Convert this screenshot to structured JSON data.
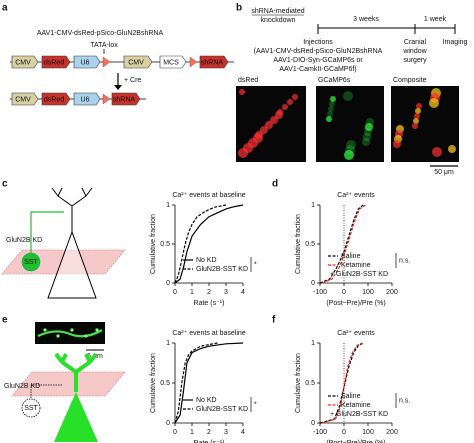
{
  "panel_labels": [
    "a",
    "b",
    "c",
    "d",
    "e",
    "f"
  ],
  "construct": {
    "title": "AAV1-CMV-dsRed-pSico-GluN2BshRNA",
    "lox": "TATA-lox",
    "cre": "+ Cre",
    "row1": [
      "CMV",
      "dsRed",
      "U6",
      "CMV",
      "MCS",
      "shRNA"
    ],
    "row2": [
      "CMV",
      "dsRed",
      "U6",
      "shRNA"
    ]
  },
  "timeline": {
    "heading": [
      "shRNA-mediated",
      "knockdown"
    ],
    "intervals": [
      "3 weeks",
      "1 week"
    ],
    "injections": [
      "Injections",
      "(AAV1-CMV-dsRed-pSico-GluN2BshRNA",
      "AAV1-DIO-Syn-GCaMP6s or",
      "AAV1-CamkII-GCaMP6f)"
    ],
    "surgery": [
      "Cranial",
      "window",
      "surgery"
    ],
    "imaging": "Imaging"
  },
  "images": {
    "labels": [
      "dsRed",
      "GCaMP6s",
      "Composite"
    ],
    "scale_bar": "50 μm"
  },
  "schematic_c": {
    "label": "GluN2B KD",
    "cell": "SST"
  },
  "schematic_e": {
    "scale_bar": "5 μm",
    "label": "GluN2B KD",
    "cell": "SST"
  },
  "chart_data": [
    {
      "type": "line",
      "title": "Ca²⁺ events at baseline",
      "xlabel": "Rate (s⁻¹)",
      "ylabel": "Cumulative fraction",
      "xlim": [
        0,
        4
      ],
      "xticks": [
        0,
        1,
        2,
        3,
        4
      ],
      "ylim": [
        0,
        1
      ],
      "yticks": [
        0,
        0.5,
        1
      ],
      "legend": "lower right",
      "series": [
        {
          "name": "No KD",
          "color": "#000000",
          "line_style": "solid",
          "x": [
            0,
            0.3,
            0.5,
            0.7,
            1,
            1.5,
            2,
            2.5,
            3,
            3.5,
            4
          ],
          "values": [
            0,
            0.05,
            0.2,
            0.4,
            0.6,
            0.75,
            0.85,
            0.9,
            0.95,
            0.98,
            1
          ]
        },
        {
          "name": "GluN2B-SST KD",
          "color": "#000000",
          "line_style": "dashed",
          "x": [
            0,
            0.2,
            0.4,
            0.6,
            0.8,
            1,
            1.3,
            1.8,
            2.3,
            3
          ],
          "values": [
            0,
            0.1,
            0.3,
            0.5,
            0.65,
            0.75,
            0.85,
            0.92,
            0.97,
            1
          ]
        }
      ],
      "annotations": [
        "*"
      ]
    },
    {
      "type": "line",
      "title": "Ca²⁺ events",
      "xlabel": "(Post−Pre)/Pre (%)",
      "ylabel": "Cumulative fraction",
      "xlim": [
        -100,
        200
      ],
      "xticks": [
        -100,
        0,
        100,
        200
      ],
      "ylim": [
        0,
        1
      ],
      "yticks": [
        0,
        0.5,
        1
      ],
      "vline": 0,
      "legend": "lower right",
      "series": [
        {
          "name": "Saline",
          "color": "#000000",
          "line_style": "dashed",
          "x": [
            -100,
            -60,
            -30,
            0,
            20,
            40,
            60,
            80
          ],
          "values": [
            0,
            0.05,
            0.2,
            0.4,
            0.6,
            0.8,
            0.95,
            1
          ]
        },
        {
          "name": "Ketamine",
          "color": "#e0301e",
          "line_style": "dashed",
          "x": [
            -90,
            -50,
            -20,
            5,
            25,
            45,
            65,
            90
          ],
          "values": [
            0,
            0.05,
            0.2,
            0.4,
            0.6,
            0.8,
            0.95,
            1
          ]
        }
      ],
      "annotations": [
        "n.s.",
        "+ GluN2B-SST KD"
      ]
    },
    {
      "type": "line",
      "title": "Ca²⁺ events at baseline",
      "xlabel": "Rate (s⁻¹)",
      "ylabel": "Cumulative fraction",
      "xlim": [
        0,
        4
      ],
      "xticks": [
        0,
        1,
        2,
        3,
        4
      ],
      "ylim": [
        0,
        1
      ],
      "yticks": [
        0,
        0.5,
        1
      ],
      "legend": "lower right",
      "series": [
        {
          "name": "No KD",
          "color": "#000000",
          "line_style": "solid",
          "x": [
            0,
            0.3,
            0.5,
            0.7,
            1,
            1.5,
            2,
            3,
            4
          ],
          "values": [
            0,
            0.1,
            0.4,
            0.75,
            0.88,
            0.93,
            0.96,
            0.99,
            1
          ]
        },
        {
          "name": "GluN2B-SST KD",
          "color": "#000000",
          "line_style": "dashed",
          "x": [
            0,
            0.2,
            0.4,
            0.6,
            0.8,
            1,
            1.5,
            2.5
          ],
          "values": [
            0,
            0.15,
            0.5,
            0.75,
            0.85,
            0.9,
            0.96,
            1
          ]
        }
      ],
      "annotations": [
        "*"
      ]
    },
    {
      "type": "line",
      "title": "Ca²⁺ events",
      "xlabel": "(Post−Pre)/Pre (%)",
      "ylabel": "Cumulative fraction",
      "xlim": [
        -100,
        200
      ],
      "xticks": [
        -100,
        0,
        100,
        200
      ],
      "ylim": [
        0,
        1
      ],
      "yticks": [
        0,
        0.5,
        1
      ],
      "vline": 0,
      "legend": "lower right",
      "series": [
        {
          "name": "Saline",
          "color": "#000000",
          "line_style": "dashed",
          "x": [
            -100,
            -40,
            -20,
            0,
            20,
            40,
            60,
            80
          ],
          "values": [
            0,
            0.05,
            0.2,
            0.45,
            0.7,
            0.88,
            0.97,
            1
          ]
        },
        {
          "name": "Ketamine",
          "color": "#e0301e",
          "line_style": "dashed",
          "x": [
            -90,
            -35,
            -15,
            0,
            15,
            35,
            55,
            75
          ],
          "values": [
            0,
            0.05,
            0.2,
            0.45,
            0.7,
            0.88,
            0.97,
            1
          ]
        }
      ],
      "annotations": [
        "n.s.",
        "+ GluN2B-SST KD"
      ]
    }
  ]
}
